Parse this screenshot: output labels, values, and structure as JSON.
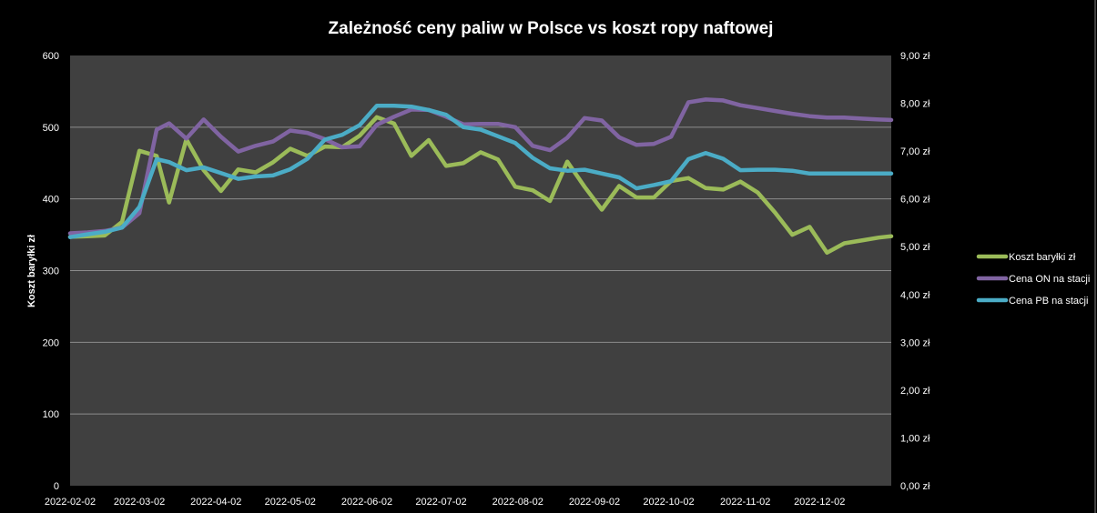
{
  "chart_data": {
    "type": "line",
    "title": "Zależność ceny paliw w Polsce vs koszt ropy naftowej",
    "xlabel": "",
    "ylabel": "Koszt baryłki zł",
    "y2label": "",
    "ylim": [
      0,
      600
    ],
    "y2lim": [
      0,
      9
    ],
    "yticks": [
      "0",
      "100",
      "200",
      "300",
      "400",
      "500",
      "600"
    ],
    "y2ticks": [
      "0,00 zł",
      "1,00 zł",
      "2,00 zł",
      "3,00 zł",
      "4,00 zł",
      "5,00 zł",
      "6,00 zł",
      "7,00 zł",
      "8,00 zł",
      "9,00 zł"
    ],
    "xticks": [
      "2022-02-02",
      "2022-03-02",
      "2022-04-02",
      "2022-05-02",
      "2022-06-02",
      "2022-07-02",
      "2022-08-02",
      "2022-09-02",
      "2022-10-02",
      "2022-11-02",
      "2022-12-02"
    ],
    "x_range": [
      "2022-02-02",
      "2022-12-31"
    ],
    "grid": true,
    "legend_position": "right",
    "background": "#404040",
    "series": [
      {
        "name": "Koszt baryłki zł",
        "axis": "left",
        "color": "#9BBB59",
        "x": [
          "2022-02-02",
          "2022-02-09",
          "2022-02-16",
          "2022-02-23",
          "2022-03-02",
          "2022-03-09",
          "2022-03-14",
          "2022-03-21",
          "2022-03-28",
          "2022-04-04",
          "2022-04-11",
          "2022-04-18",
          "2022-04-25",
          "2022-05-02",
          "2022-05-09",
          "2022-05-16",
          "2022-05-23",
          "2022-05-30",
          "2022-06-06",
          "2022-06-13",
          "2022-06-20",
          "2022-06-27",
          "2022-07-04",
          "2022-07-11",
          "2022-07-18",
          "2022-07-25",
          "2022-08-01",
          "2022-08-08",
          "2022-08-15",
          "2022-08-22",
          "2022-08-29",
          "2022-09-05",
          "2022-09-12",
          "2022-09-19",
          "2022-09-26",
          "2022-10-03",
          "2022-10-10",
          "2022-10-17",
          "2022-10-24",
          "2022-10-31",
          "2022-11-07",
          "2022-11-14",
          "2022-11-21",
          "2022-11-28",
          "2022-12-05",
          "2022-12-12",
          "2022-12-19",
          "2022-12-26",
          "2022-12-31"
        ],
        "y": [
          347,
          348,
          349,
          368,
          467,
          460,
          395,
          483,
          440,
          411,
          441,
          437,
          451,
          470,
          460,
          473,
          472,
          488,
          514,
          505,
          460,
          482,
          446,
          450,
          465,
          455,
          417,
          412,
          397,
          452,
          417,
          385,
          418,
          402,
          402,
          425,
          429,
          415,
          413,
          424,
          409,
          381,
          350,
          361,
          325,
          338,
          342,
          346,
          348
        ]
      },
      {
        "name": "Cena ON na stacji",
        "axis": "right",
        "color": "#8064A2",
        "x": [
          "2022-02-02",
          "2022-02-09",
          "2022-02-16",
          "2022-02-23",
          "2022-03-02",
          "2022-03-09",
          "2022-03-14",
          "2022-03-21",
          "2022-03-28",
          "2022-04-04",
          "2022-04-11",
          "2022-04-18",
          "2022-04-25",
          "2022-05-02",
          "2022-05-09",
          "2022-05-16",
          "2022-05-23",
          "2022-05-30",
          "2022-06-06",
          "2022-06-13",
          "2022-06-20",
          "2022-06-27",
          "2022-07-04",
          "2022-07-11",
          "2022-07-18",
          "2022-07-25",
          "2022-08-01",
          "2022-08-08",
          "2022-08-15",
          "2022-08-22",
          "2022-08-29",
          "2022-09-05",
          "2022-09-12",
          "2022-09-19",
          "2022-09-26",
          "2022-10-03",
          "2022-10-10",
          "2022-10-17",
          "2022-10-24",
          "2022-10-31",
          "2022-11-07",
          "2022-11-14",
          "2022-11-21",
          "2022-11-28",
          "2022-12-05",
          "2022-12-12",
          "2022-12-19",
          "2022-12-26",
          "2022-12-31"
        ],
        "y": [
          5.28,
          5.3,
          5.33,
          5.4,
          5.7,
          7.45,
          7.58,
          7.26,
          7.66,
          7.3,
          6.99,
          7.11,
          7.2,
          7.43,
          7.38,
          7.25,
          7.08,
          7.1,
          7.55,
          7.72,
          7.87,
          7.86,
          7.72,
          7.56,
          7.57,
          7.57,
          7.5,
          7.11,
          7.02,
          7.28,
          7.69,
          7.64,
          7.29,
          7.13,
          7.15,
          7.3,
          8.02,
          8.08,
          8.06,
          7.96,
          7.9,
          7.84,
          7.78,
          7.73,
          7.7,
          7.7,
          7.68,
          7.66,
          7.65
        ]
      },
      {
        "name": "Cena PB na stacji",
        "axis": "right",
        "color": "#4BACC6",
        "x": [
          "2022-02-02",
          "2022-02-09",
          "2022-02-16",
          "2022-02-23",
          "2022-03-02",
          "2022-03-09",
          "2022-03-14",
          "2022-03-21",
          "2022-03-28",
          "2022-04-04",
          "2022-04-11",
          "2022-04-18",
          "2022-04-25",
          "2022-05-02",
          "2022-05-09",
          "2022-05-16",
          "2022-05-23",
          "2022-05-30",
          "2022-06-06",
          "2022-06-13",
          "2022-06-20",
          "2022-06-27",
          "2022-07-04",
          "2022-07-11",
          "2022-07-18",
          "2022-07-25",
          "2022-08-01",
          "2022-08-08",
          "2022-08-15",
          "2022-08-22",
          "2022-08-29",
          "2022-09-05",
          "2022-09-12",
          "2022-09-19",
          "2022-09-26",
          "2022-10-03",
          "2022-10-10",
          "2022-10-17",
          "2022-10-24",
          "2022-10-31",
          "2022-11-07",
          "2022-11-14",
          "2022-11-21",
          "2022-11-28",
          "2022-12-05",
          "2022-12-12",
          "2022-12-19",
          "2022-12-26",
          "2022-12-31"
        ],
        "y": [
          5.2,
          5.26,
          5.31,
          5.4,
          5.83,
          6.83,
          6.77,
          6.6,
          6.66,
          6.54,
          6.42,
          6.47,
          6.49,
          6.62,
          6.84,
          7.24,
          7.34,
          7.54,
          7.95,
          7.95,
          7.93,
          7.86,
          7.76,
          7.5,
          7.45,
          7.31,
          7.17,
          6.86,
          6.64,
          6.59,
          6.61,
          6.53,
          6.45,
          6.22,
          6.29,
          6.37,
          6.83,
          6.96,
          6.84,
          6.6,
          6.61,
          6.61,
          6.59,
          6.53,
          6.53,
          6.53,
          6.53,
          6.53,
          6.53
        ]
      }
    ]
  }
}
